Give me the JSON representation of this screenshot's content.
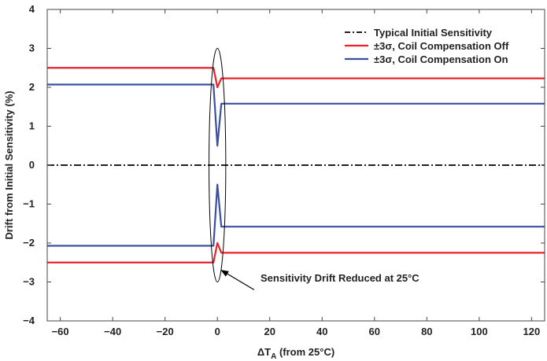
{
  "chart_data": {
    "type": "line",
    "title": "",
    "xlabel_main": "ΔT",
    "xlabel_sub": "A",
    "xlabel_rest": " (from 25°C)",
    "ylabel": "Drift from Initial Sensitivity (%)",
    "xlim": [
      -65,
      125
    ],
    "ylim": [
      -4,
      4
    ],
    "x_ticks": [
      -60,
      -40,
      -20,
      0,
      20,
      40,
      60,
      80,
      100,
      120
    ],
    "x_tick_labels": [
      "−60",
      "−40",
      "−20",
      "0",
      "20",
      "40",
      "60",
      "80",
      "100",
      "120"
    ],
    "y_ticks": [
      -4,
      -3,
      -2,
      -1,
      0,
      1,
      2,
      3,
      4
    ],
    "y_tick_labels": [
      "−4",
      "−3",
      "−2",
      "−1",
      "0",
      "1",
      "2",
      "3",
      "4"
    ],
    "grid": false,
    "legend_position": "top-right",
    "series": [
      {
        "name": "Typical Initial Sensitivity",
        "color": "#000000",
        "dash": "dash-dot",
        "x": [
          -65,
          125
        ],
        "y": [
          0,
          0
        ]
      },
      {
        "name": "±3σ, Coil Compensation Off",
        "color": "#e8232a",
        "x": [
          -65,
          -1.5,
          0,
          1.5,
          125
        ],
        "y": [
          2.5,
          2.5,
          2.0,
          2.23,
          2.23
        ]
      },
      {
        "name": "±3σ, Coil Compensation Off",
        "color": "#e8232a",
        "legend": false,
        "x": [
          -65,
          -1.5,
          0,
          1.5,
          125
        ],
        "y": [
          -2.5,
          -2.5,
          -2.0,
          -2.25,
          -2.25
        ]
      },
      {
        "name": "±3σ, Coil Compensation On",
        "color": "#3a4fa0",
        "x": [
          -65,
          -1.5,
          0,
          1.5,
          125
        ],
        "y": [
          2.07,
          2.07,
          0.5,
          1.58,
          1.58
        ]
      },
      {
        "name": "±3σ, Coil Compensation On",
        "color": "#3a4fa0",
        "legend": false,
        "x": [
          -65,
          -1.5,
          0,
          1.5,
          125
        ],
        "y": [
          -2.07,
          -2.07,
          -0.5,
          -1.58,
          -1.58
        ]
      }
    ],
    "annotation": {
      "text": "Sensitivity Drift Reduced at 25°C",
      "ellipse_center": [
        0,
        0
      ],
      "ellipse_rx": 3.2,
      "ellipse_ry": 3.0,
      "arrow_tip": [
        1.5,
        -2.7
      ],
      "arrow_tail": [
        14,
        -3.2
      ]
    }
  }
}
